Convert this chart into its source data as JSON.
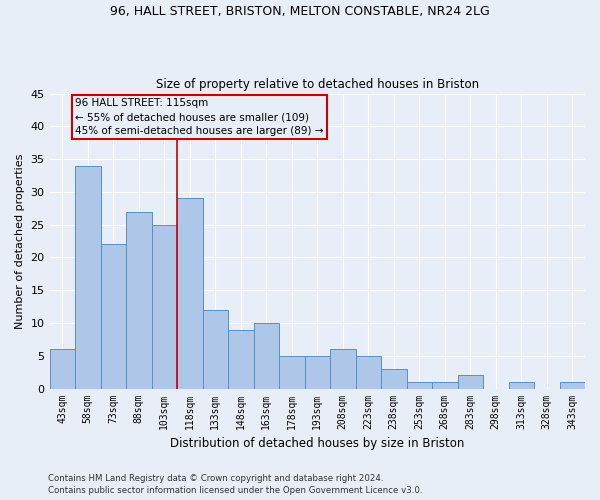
{
  "title1": "96, HALL STREET, BRISTON, MELTON CONSTABLE, NR24 2LG",
  "title2": "Size of property relative to detached houses in Briston",
  "xlabel": "Distribution of detached houses by size in Briston",
  "ylabel": "Number of detached properties",
  "categories": [
    "43sqm",
    "58sqm",
    "73sqm",
    "88sqm",
    "103sqm",
    "118sqm",
    "133sqm",
    "148sqm",
    "163sqm",
    "178sqm",
    "193sqm",
    "208sqm",
    "223sqm",
    "238sqm",
    "253sqm",
    "268sqm",
    "283sqm",
    "298sqm",
    "313sqm",
    "328sqm",
    "343sqm"
  ],
  "values": [
    6,
    34,
    22,
    27,
    25,
    29,
    12,
    9,
    10,
    5,
    5,
    6,
    5,
    3,
    1,
    1,
    2,
    0,
    1,
    0,
    1
  ],
  "bar_color": "#aec6e8",
  "bar_edge_color": "#5a8fc2",
  "vline_x": 4.5,
  "vline_color": "#cc0000",
  "annotation_line1": "96 HALL STREET: 115sqm",
  "annotation_line2": "← 55% of detached houses are smaller (109)",
  "annotation_line3": "45% of semi-detached houses are larger (89) →",
  "annotation_box_color": "#cc0000",
  "ylim": [
    0,
    45
  ],
  "yticks": [
    0,
    5,
    10,
    15,
    20,
    25,
    30,
    35,
    40,
    45
  ],
  "footer1": "Contains HM Land Registry data © Crown copyright and database right 2024.",
  "footer2": "Contains public sector information licensed under the Open Government Licence v3.0.",
  "background_color": "#e8eef8",
  "grid_color": "#ffffff"
}
